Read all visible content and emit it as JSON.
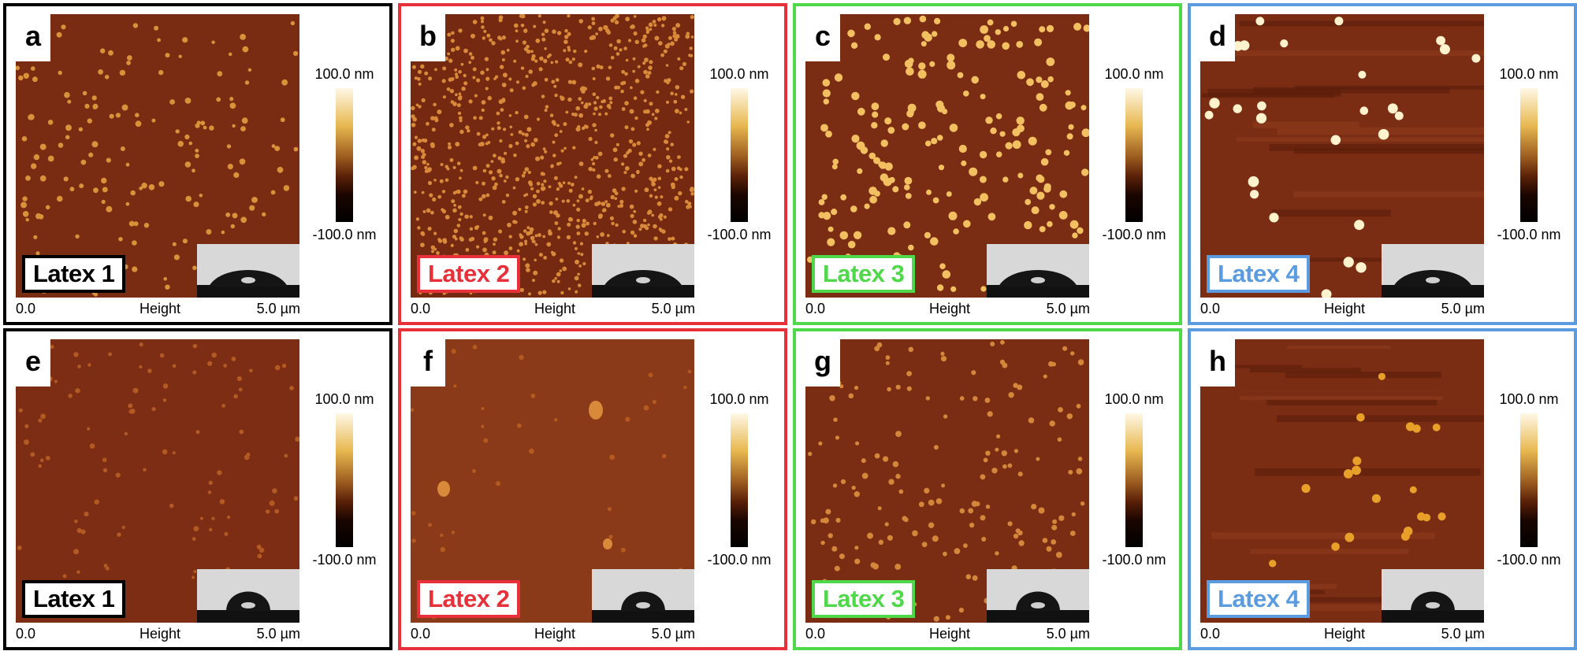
{
  "panels": [
    {
      "letter": "a",
      "latex": "Latex 1",
      "scale_max": "100.0 nm",
      "scale_min": "-100.0 nm",
      "axis_start": "0.0",
      "axis_label": "Height",
      "axis_end": "5.0 µm",
      "frame_color": "#000000",
      "label_color": "#000000"
    },
    {
      "letter": "b",
      "latex": "Latex 2",
      "scale_max": "100.0 nm",
      "scale_min": "-100.0 nm",
      "axis_start": "0.0",
      "axis_label": "Height",
      "axis_end": "5.0 µm",
      "frame_color": "#e8303a",
      "label_color": "#e8303a"
    },
    {
      "letter": "c",
      "latex": "Latex 3",
      "scale_max": "100.0 nm",
      "scale_min": "-100.0 nm",
      "axis_start": "0.0",
      "axis_label": "Height",
      "axis_end": "5.0 µm",
      "frame_color": "#4fd84a",
      "label_color": "#4fd84a"
    },
    {
      "letter": "d",
      "latex": "Latex 4",
      "scale_max": "100.0 nm",
      "scale_min": "-100.0 nm",
      "axis_start": "0.0",
      "axis_label": "Height",
      "axis_end": "5.0 µm",
      "frame_color": "#5b9be0",
      "label_color": "#5b9be0"
    },
    {
      "letter": "e",
      "latex": "Latex 1",
      "scale_max": "100.0 nm",
      "scale_min": "-100.0 nm",
      "axis_start": "0.0",
      "axis_label": "Height",
      "axis_end": "5.0 µm",
      "frame_color": "#000000",
      "label_color": "#000000"
    },
    {
      "letter": "f",
      "latex": "Latex 2",
      "scale_max": "100.0 nm",
      "scale_min": "-100.0 nm",
      "axis_start": "0.0",
      "axis_label": "Height",
      "axis_end": "5.0 µm",
      "frame_color": "#e8303a",
      "label_color": "#e8303a"
    },
    {
      "letter": "g",
      "latex": "Latex 3",
      "scale_max": "100.0 nm",
      "scale_min": "-100.0 nm",
      "axis_start": "0.0",
      "axis_label": "Height",
      "axis_end": "5.0 µm",
      "frame_color": "#4fd84a",
      "label_color": "#4fd84a"
    },
    {
      "letter": "h",
      "latex": "Latex 4",
      "scale_max": "100.0 nm",
      "scale_min": "-100.0 nm",
      "axis_start": "0.0",
      "axis_label": "Height",
      "axis_end": "5.0 µm",
      "frame_color": "#5b9be0",
      "label_color": "#5b9be0"
    }
  ]
}
